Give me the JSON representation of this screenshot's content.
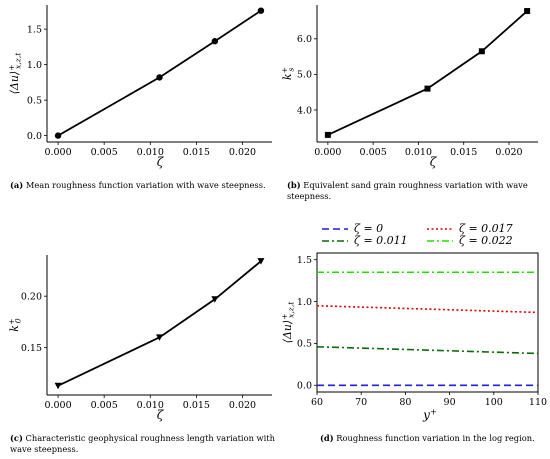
{
  "chart_data": [
    {
      "id": "a",
      "type": "line",
      "xlabel": "ζ",
      "ylabel": "⟨Δu⟩⁺x,z,t",
      "ylabel_main": "⟨Δu⟩",
      "ylabel_sup": "+",
      "ylabel_sub": "x,z,t",
      "xlim": [
        -0.0012,
        0.0232
      ],
      "ylim": [
        -0.09,
        1.84
      ],
      "xticks": [
        "0.000",
        "0.005",
        "0.010",
        "0.015",
        "0.020"
      ],
      "yticks": [
        "0.0",
        "0.5",
        "1.0",
        "1.5"
      ],
      "marker": "circle",
      "series": [
        {
          "x": [
            0.0,
            0.011,
            0.017,
            0.022
          ],
          "y": [
            0.0,
            0.82,
            1.33,
            1.76
          ]
        }
      ],
      "caption_tag": "(a)",
      "caption": "Mean roughness function variation with wave steepness."
    },
    {
      "id": "b",
      "type": "line",
      "xlabel": "ζ",
      "ylabel": "k⁺s",
      "ylabel_main": "k",
      "ylabel_sup": "+",
      "ylabel_sub": "s",
      "xlim": [
        -0.0012,
        0.0232
      ],
      "ylim": [
        3.1,
        6.95
      ],
      "xticks": [
        "0.000",
        "0.005",
        "0.010",
        "0.015",
        "0.020"
      ],
      "yticks": [
        "4.0",
        "5.0",
        "6.0"
      ],
      "marker": "square",
      "series": [
        {
          "x": [
            0.0,
            0.011,
            0.017,
            0.022
          ],
          "y": [
            3.3,
            4.6,
            5.65,
            6.78
          ]
        }
      ],
      "caption_tag": "(b)",
      "caption": "Equivalent sand grain roughness variation with wave steepness."
    },
    {
      "id": "c",
      "type": "line",
      "xlabel": "ζ",
      "ylabel": "k⁺0",
      "ylabel_main": "k",
      "ylabel_sup": "+",
      "ylabel_sub": "0",
      "xlim": [
        -0.0012,
        0.0232
      ],
      "ylim": [
        0.104,
        0.24
      ],
      "xticks": [
        "0.000",
        "0.005",
        "0.010",
        "0.015",
        "0.020"
      ],
      "yticks": [
        "0.15",
        "0.20"
      ],
      "marker": "triangle-down",
      "series": [
        {
          "x": [
            0.0,
            0.011,
            0.017,
            0.022
          ],
          "y": [
            0.113,
            0.16,
            0.197,
            0.234
          ]
        }
      ],
      "caption_tag": "(c)",
      "caption": "Characteristic geophysical roughness length variation with wave steepness."
    },
    {
      "id": "d",
      "type": "line",
      "xlabel": "y⁺",
      "xlabel_main": "y",
      "xlabel_sup": "+",
      "ylabel": "⟨Δu⟩⁺x,z,t",
      "ylabel_main": "⟨Δu⟩",
      "ylabel_sup": "+",
      "ylabel_sub": "x,z,t",
      "xlim": [
        60,
        110
      ],
      "ylim": [
        -0.08,
        1.58
      ],
      "xticks": [
        "60",
        "70",
        "80",
        "90",
        "100",
        "110"
      ],
      "yticks": [
        "0.0",
        "0.5",
        "1.0",
        "1.5"
      ],
      "legend_position": "top",
      "series": [
        {
          "name": "ζ = 0",
          "color": "#1f1fdd",
          "dash": "7,4",
          "x": [
            60,
            110
          ],
          "y": [
            0.0,
            0.0
          ]
        },
        {
          "name": "ζ = 0.011",
          "color": "#0a6a0a",
          "dash": "7,3,2,3",
          "x": [
            60,
            110
          ],
          "y": [
            0.46,
            0.38
          ]
        },
        {
          "name": "ζ = 0.017",
          "color": "#e00000",
          "dash": "2,2.5",
          "x": [
            60,
            110
          ],
          "y": [
            0.95,
            0.87
          ]
        },
        {
          "name": "ζ = 0.022",
          "color": "#22dd00",
          "dash": "7,3,2,3",
          "x": [
            60,
            110
          ],
          "y": [
            1.35,
            1.35
          ]
        }
      ],
      "caption_tag": "(d)",
      "caption": "Roughness function variation in the log region."
    }
  ],
  "colors": {
    "line": "#000000",
    "axis": "#000000"
  }
}
